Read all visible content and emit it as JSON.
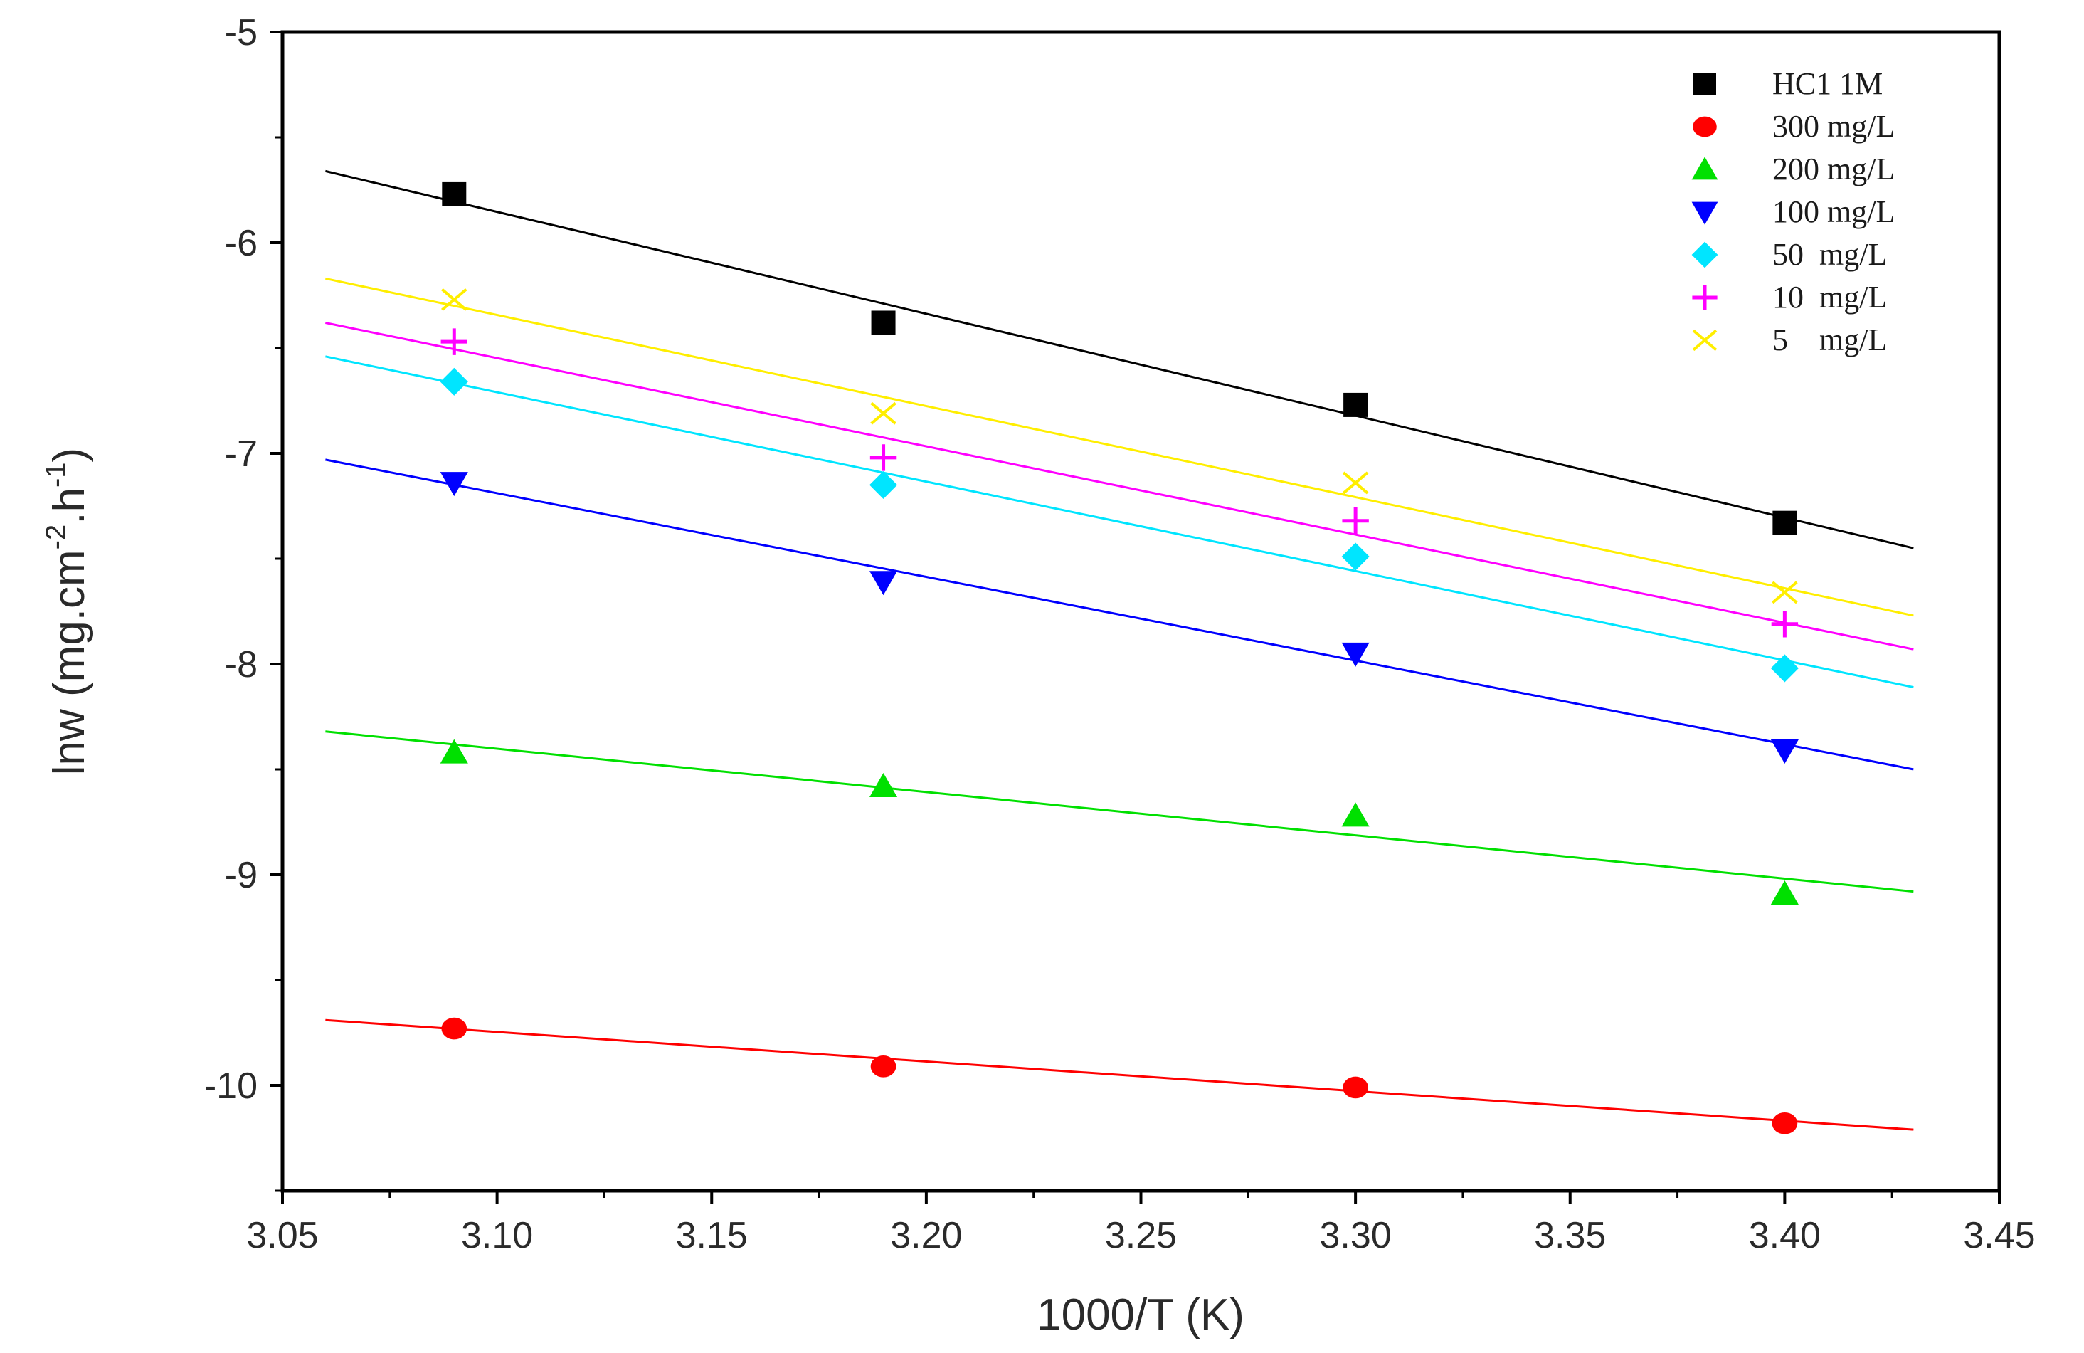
{
  "chart_data": {
    "type": "scatter",
    "title": "",
    "xlabel": "1000/T (K)",
    "ylabel_main": "lnw (mg.cm",
    "ylabel_sup1": "-2",
    "ylabel_mid": ".h",
    "ylabel_sup2": "-1",
    "ylabel_end": ")",
    "xlim": [
      3.05,
      3.45
    ],
    "ylim": [
      -10.5,
      -5
    ],
    "x_ticks": [
      "3.05",
      "3.10",
      "3.15",
      "3.20",
      "3.25",
      "3.30",
      "3.35",
      "3.40",
      "3.45"
    ],
    "y_ticks": [
      "-5",
      "-6",
      "-7",
      "-8",
      "-9",
      "-10"
    ],
    "fit_x_range": [
      3.06,
      3.43
    ],
    "legend_position": "top-right",
    "series": [
      {
        "name": "HC1 1M",
        "marker": "square",
        "color": "#000000",
        "x": [
          3.09,
          3.19,
          3.3,
          3.4
        ],
        "y": [
          -5.77,
          -6.38,
          -6.77,
          -7.33
        ],
        "fit": [
          -5.66,
          -7.45
        ]
      },
      {
        "name": "300 mg/L",
        "marker": "circle",
        "color": "#ff0000",
        "x": [
          3.09,
          3.19,
          3.3,
          3.4
        ],
        "y": [
          -9.73,
          -9.91,
          -10.01,
          -10.18
        ],
        "fit": [
          -9.69,
          -10.21
        ]
      },
      {
        "name": "200 mg/L",
        "marker": "triangle-up",
        "color": "#00e000",
        "x": [
          3.09,
          3.19,
          3.3,
          3.4
        ],
        "y": [
          -8.42,
          -8.58,
          -8.72,
          -9.09
        ],
        "fit": [
          -8.32,
          -9.08
        ]
      },
      {
        "name": "100 mg/L",
        "marker": "triangle-down",
        "color": "#0000ff",
        "x": [
          3.09,
          3.19,
          3.3,
          3.4
        ],
        "y": [
          -7.14,
          -7.61,
          -7.95,
          -8.41
        ],
        "fit": [
          -7.03,
          -8.5
        ]
      },
      {
        "name": "50  mg/L",
        "marker": "diamond",
        "color": "#00e5ff",
        "x": [
          3.09,
          3.19,
          3.3,
          3.4
        ],
        "y": [
          -6.66,
          -7.15,
          -7.49,
          -8.02
        ],
        "fit": [
          -6.54,
          -8.11
        ]
      },
      {
        "name": "10  mg/L",
        "marker": "plus",
        "color": "#ff00ff",
        "x": [
          3.09,
          3.19,
          3.3,
          3.4
        ],
        "y": [
          -6.47,
          -7.02,
          -7.32,
          -7.81
        ],
        "fit": [
          -6.38,
          -7.93
        ]
      },
      {
        "name": "5    mg/L",
        "marker": "x",
        "color": "#ffee00",
        "x": [
          3.09,
          3.19,
          3.3,
          3.4
        ],
        "y": [
          -6.27,
          -6.81,
          -7.14,
          -7.66
        ],
        "fit": [
          -6.17,
          -7.77
        ]
      }
    ]
  }
}
